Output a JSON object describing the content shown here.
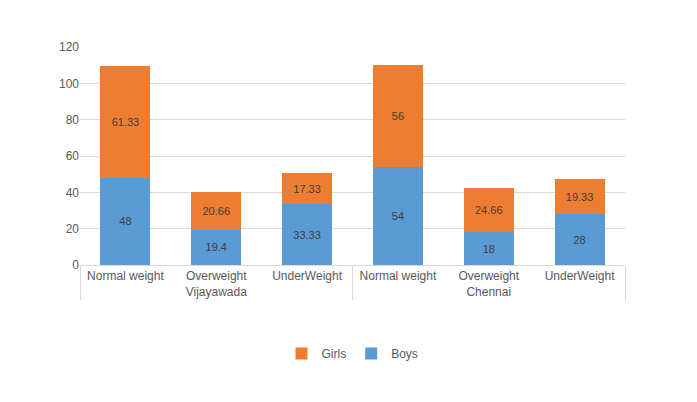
{
  "chart_data": {
    "type": "bar",
    "stacked": true,
    "data_labels": true,
    "grid": true,
    "legend": "bottom",
    "categories": [
      "Normal weight",
      "Overweight",
      "UnderWeight",
      "Normal weight",
      "Overweight",
      "UnderWeight"
    ],
    "category_groups": [
      "Vijayawada",
      "Vijayawada",
      "Vijayawada",
      "Chennai",
      "Chennai",
      "Chennai"
    ],
    "series": [
      {
        "name": "Boys",
        "color": "#5b9bd5",
        "values": [
          48,
          19.4,
          33.33,
          54,
          18,
          28
        ]
      },
      {
        "name": "Girls",
        "color": "#ed7d31",
        "values": [
          61.33,
          20.66,
          17.33,
          56,
          24.66,
          19.33
        ]
      }
    ],
    "ylim": [
      0,
      120
    ],
    "yticks": [
      0,
      20,
      40,
      60,
      80,
      100,
      120
    ]
  }
}
